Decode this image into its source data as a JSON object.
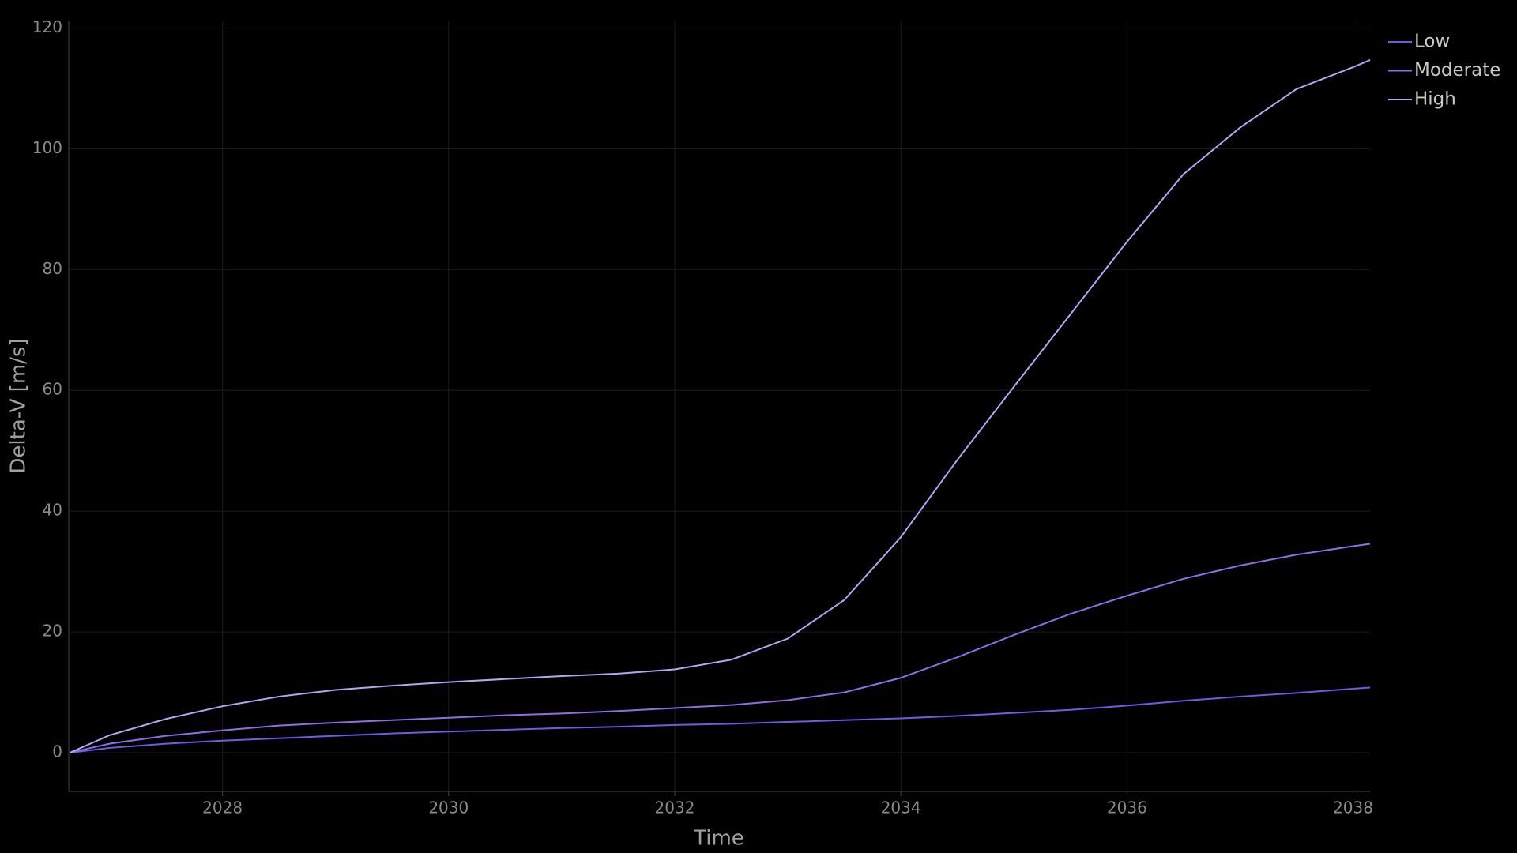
{
  "chart_data": {
    "type": "line",
    "x_label": "Time",
    "y_label": "Delta-V [m/s]",
    "x": [
      2026.65,
      2027,
      2027.5,
      2028,
      2028.5,
      2029,
      2029.5,
      2030,
      2030.5,
      2031,
      2031.5,
      2032,
      2032.5,
      2033,
      2033.5,
      2034,
      2034.5,
      2035,
      2035.5,
      2036,
      2036.5,
      2037,
      2037.5,
      2038,
      2038.15
    ],
    "series": [
      {
        "name": "Low",
        "color": "#6c5ce7",
        "values": [
          0,
          0.8,
          1.5,
          2.0,
          2.4,
          2.8,
          3.2,
          3.5,
          3.8,
          4.1,
          4.3,
          4.6,
          4.8,
          5.1,
          5.4,
          5.7,
          6.1,
          6.6,
          7.1,
          7.8,
          8.6,
          9.3,
          9.9,
          10.6,
          10.8
        ]
      },
      {
        "name": "Moderate",
        "color": "#8e6ee8",
        "values": [
          0,
          1.5,
          2.8,
          3.7,
          4.5,
          5.0,
          5.4,
          5.8,
          6.2,
          6.5,
          6.9,
          7.4,
          7.9,
          8.7,
          10.0,
          12.4,
          15.8,
          19.5,
          23.0,
          26.0,
          28.8,
          31.0,
          32.8,
          34.2,
          34.6
        ]
      },
      {
        "name": "High",
        "color": "#b3a6f2",
        "values": [
          0,
          2.9,
          5.6,
          7.7,
          9.3,
          10.4,
          11.1,
          11.7,
          12.2,
          12.7,
          13.1,
          13.8,
          15.4,
          18.9,
          25.3,
          35.7,
          48.5,
          60.6,
          72.6,
          84.6,
          95.8,
          103.5,
          109.9,
          113.5,
          114.7
        ]
      }
    ],
    "xlim": [
      2026.64,
      2038.15
    ],
    "ylim": [
      -6.4,
      121.1
    ],
    "xticks": [
      2028,
      2030,
      2032,
      2034,
      2036,
      2038
    ],
    "yticks": [
      0,
      20,
      40,
      60,
      80,
      100,
      120
    ],
    "grid": true,
    "legend": "top-right"
  }
}
